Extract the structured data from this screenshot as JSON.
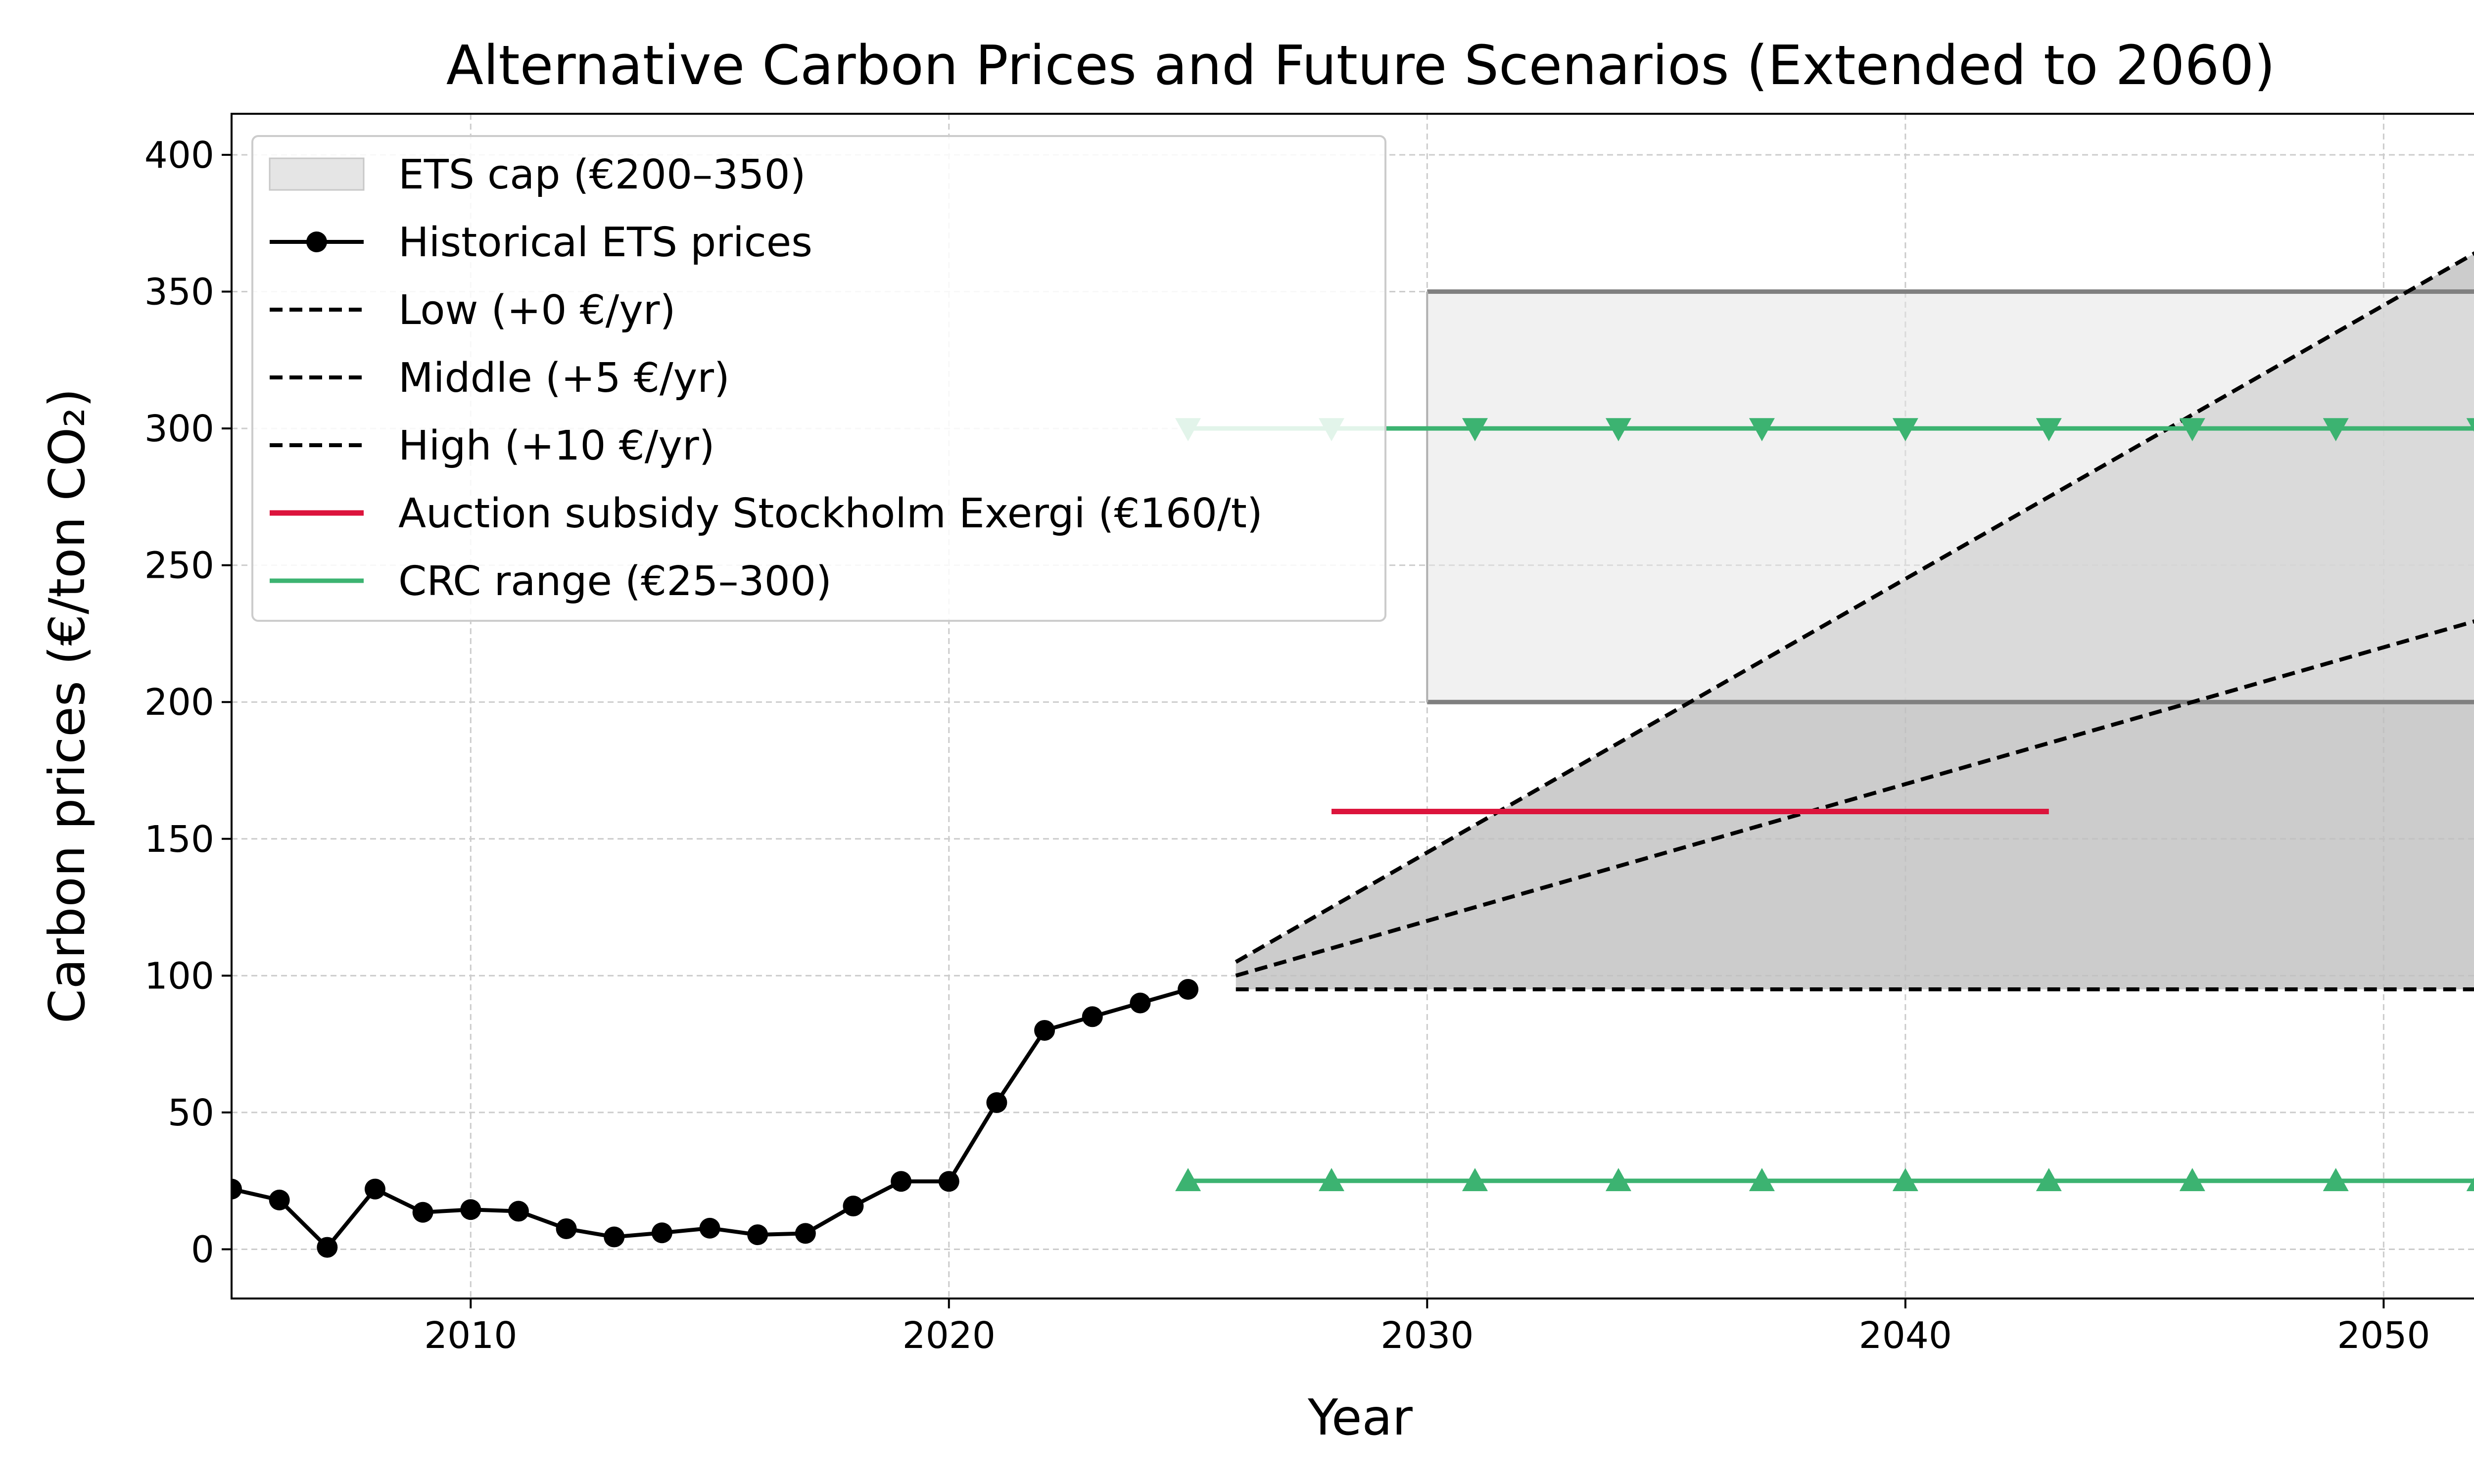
{
  "chart_data": {
    "type": "line",
    "title": "Alternative Carbon Prices and Future Scenarios (Extended to 2060)",
    "xlabel": "Year",
    "ylabel": "Carbon prices (€/ton CO₂)",
    "xlim": [
      2005,
      2052.2
    ],
    "ylim": [
      -18,
      415
    ],
    "xticks": [
      2010,
      2020,
      2030,
      2040,
      2050
    ],
    "yticks": [
      0,
      50,
      100,
      150,
      200,
      250,
      300,
      350,
      400
    ],
    "grid": true,
    "legend_position": "upper-left",
    "colors": {
      "historical": "#000000",
      "scenario": "#000000",
      "auction": "#dc143c",
      "crc": "#3cb371",
      "ets_fill": "#e5e5e5",
      "ets_edge": "#808080",
      "scenario_fill": "#bfbfbf"
    },
    "legend": [
      {
        "label": "ETS cap (€200–350)",
        "kind": "patch"
      },
      {
        "label": "Historical ETS prices",
        "kind": "line-marker"
      },
      {
        "label": "Low (+0 €/yr)",
        "kind": "dashed"
      },
      {
        "label": "Middle (+5 €/yr)",
        "kind": "dashed"
      },
      {
        "label": "High (+10 €/yr)",
        "kind": "dashed"
      },
      {
        "label": "Auction subsidy Stockholm Exergi (€160/t)",
        "kind": "red-line"
      },
      {
        "label": "CRC range (€25–300)",
        "kind": "green-line"
      }
    ],
    "historical": {
      "x": [
        2005,
        2006,
        2007,
        2008,
        2009,
        2010,
        2011,
        2012,
        2013,
        2014,
        2015,
        2016,
        2017,
        2018,
        2019,
        2020,
        2021,
        2022,
        2023,
        2024,
        2025
      ],
      "y": [
        22,
        18,
        0.7,
        22,
        13.5,
        14.5,
        13.9,
        7.5,
        4.5,
        6,
        7.7,
        5.3,
        5.8,
        15.8,
        24.8,
        24.8,
        53.6,
        80,
        85,
        90,
        95
      ]
    },
    "scenarios": [
      {
        "name": "Low (+0 €/yr)",
        "start_year": 2026,
        "start_value": 95,
        "slope": 0
      },
      {
        "name": "Middle (+5 €/yr)",
        "start_year": 2026,
        "start_value": 100,
        "slope": 5
      },
      {
        "name": "High (+10 €/yr)",
        "start_year": 2026,
        "start_value": 105,
        "slope": 10
      }
    ],
    "ets_cap": {
      "from_year": 2030,
      "low": 200,
      "high": 350
    },
    "auction_subsidy": {
      "from_year": 2028,
      "to_year": 2043,
      "value": 160
    },
    "crc_range": {
      "low": 25,
      "high": 300,
      "marker_years": [
        2025,
        2028,
        2031,
        2034,
        2037,
        2040,
        2043,
        2046,
        2049,
        2052
      ]
    }
  }
}
